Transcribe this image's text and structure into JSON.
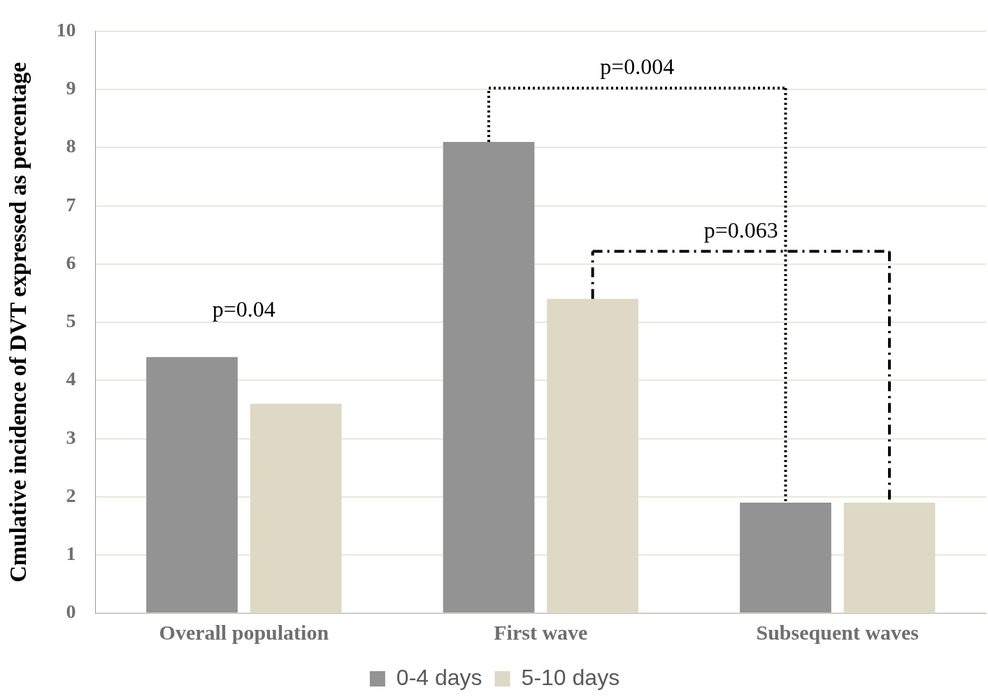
{
  "chart_data": {
    "type": "bar",
    "ylabel": "Cmulative incidence of DVT expressed as percentage",
    "categories": [
      "Overall population",
      "First wave",
      "Subsequent waves"
    ],
    "series": [
      {
        "name": "0-4 days",
        "color": "#939393",
        "values": [
          4.4,
          8.1,
          1.9
        ]
      },
      {
        "name": "5-10 days",
        "color": "#ddd9c4",
        "values": [
          3.6,
          5.4,
          1.9
        ]
      }
    ],
    "ylim": [
      0,
      10
    ],
    "yticks": [
      0,
      1,
      2,
      3,
      4,
      5,
      6,
      7,
      8,
      9,
      10
    ],
    "grid": "y",
    "legend": "bottom",
    "annotations": [
      "p=0.04",
      "p=0.004",
      "p=0.063"
    ]
  }
}
